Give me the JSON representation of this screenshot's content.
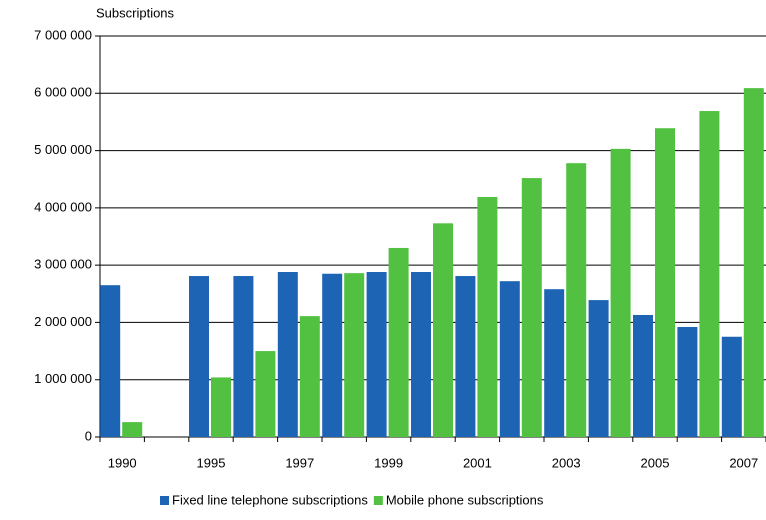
{
  "chart_data": {
    "type": "bar",
    "y_axis_label": "Subscriptions",
    "categories": [
      "1990",
      null,
      "1995",
      null,
      "1997",
      null,
      "1999",
      null,
      "2001",
      null,
      "2003",
      null,
      "2005",
      null,
      "2007"
    ],
    "series": [
      {
        "name": "Fixed line telephone subscriptions",
        "color": "#1d64b4",
        "values": [
          2650000,
          null,
          2810000,
          2810000,
          2880000,
          2850000,
          2880000,
          2880000,
          2810000,
          2720000,
          2580000,
          2390000,
          2130000,
          1920000,
          1750000
        ]
      },
      {
        "name": "Mobile phone subscriptions",
        "color": "#52c041",
        "values": [
          260000,
          null,
          1040000,
          1500000,
          2110000,
          2860000,
          3300000,
          3730000,
          4190000,
          4520000,
          4780000,
          5030000,
          5390000,
          5690000,
          6090000
        ]
      }
    ],
    "ylim": [
      0,
      7000000
    ],
    "yticks": [
      0,
      {
        "value": 1000000,
        "label": "1 000 000"
      },
      {
        "value": 2000000,
        "label": "2 000 000"
      },
      {
        "value": 3000000,
        "label": "3 000 000"
      },
      {
        "value": 4000000,
        "label": "4 000 000"
      },
      {
        "value": 5000000,
        "label": "5 000 000"
      },
      {
        "value": 6000000,
        "label": "6 000 000"
      },
      {
        "value": 7000000,
        "label": "7 000 000"
      }
    ],
    "grid": true
  }
}
